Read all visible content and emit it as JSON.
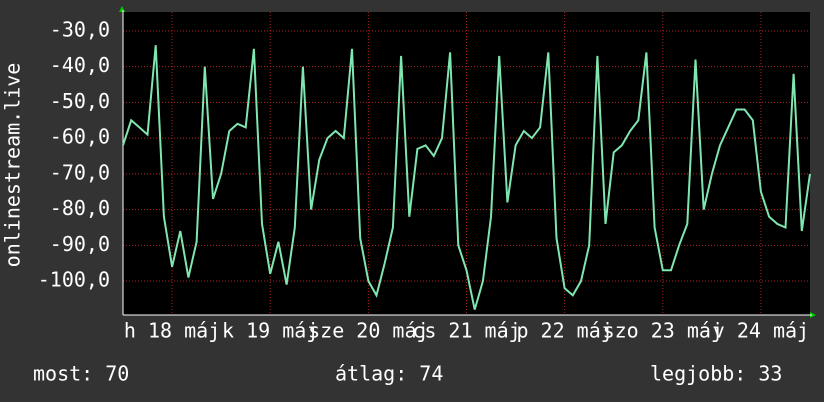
{
  "chart_data": {
    "type": "line",
    "ylabel": "onlinestream.live",
    "x": [
      0,
      2,
      4,
      6,
      8,
      10,
      12,
      14,
      16,
      18,
      20,
      22,
      24,
      26,
      28,
      30,
      32,
      34,
      36,
      38,
      40,
      42,
      44,
      46,
      48,
      50,
      52,
      54,
      56,
      58,
      60,
      62,
      64,
      66,
      68,
      70,
      72,
      74,
      76,
      78,
      80,
      82,
      84,
      86,
      88,
      90,
      92,
      94,
      96,
      98,
      100,
      102,
      104,
      106,
      108,
      110,
      112,
      114,
      116,
      118,
      120,
      122,
      124,
      126,
      128,
      130,
      132,
      134,
      136,
      138,
      140,
      142,
      144,
      146,
      148,
      150,
      152,
      154,
      156,
      158,
      160,
      162,
      164,
      166,
      168
    ],
    "series": [
      {
        "color": "#7fe6b0",
        "values": [
          -62,
          -55,
          -57,
          -59,
          -34,
          -82,
          -96,
          -86,
          -99,
          -89,
          -40,
          -77,
          -70,
          -58,
          -56,
          -57,
          -35,
          -84,
          -98,
          -89,
          -101,
          -85,
          -40,
          -80,
          -66,
          -60,
          -58,
          -60,
          -35,
          -88,
          -100,
          -104,
          -95,
          -85,
          -37,
          -82,
          -63,
          -62,
          -65,
          -60,
          -36,
          -90,
          -97,
          -108,
          -100,
          -82,
          -37,
          -78,
          -62,
          -58,
          -60,
          -57,
          -36,
          -88,
          -102,
          -104,
          -100,
          -90,
          -37,
          -84,
          -64,
          -62,
          -58,
          -55,
          -36,
          -85,
          -97,
          -97,
          -90,
          -84,
          -38,
          -80,
          -70,
          -62,
          -57,
          -52,
          -52,
          -55,
          -75,
          -82,
          -84,
          -85,
          -42,
          -86,
          -70
        ]
      }
    ],
    "xlim": [
      0,
      168
    ],
    "xticks": [
      {
        "value": 12,
        "label": "h 18 máj"
      },
      {
        "value": 36,
        "label": "k 19 máj"
      },
      {
        "value": 60,
        "label": "sze 20 máj"
      },
      {
        "value": 84,
        "label": "cs 21 máj"
      },
      {
        "value": 108,
        "label": "p 22 máj"
      },
      {
        "value": 132,
        "label": "szo 23 máj"
      },
      {
        "value": 156,
        "label": "v 24 máj"
      }
    ],
    "ylim": [
      -109.5,
      -24.7
    ],
    "yticks": [
      {
        "value": -30,
        "label": "-30,0"
      },
      {
        "value": -40,
        "label": "-40,0"
      },
      {
        "value": -50,
        "label": "-50,0"
      },
      {
        "value": -60,
        "label": "-60,0"
      },
      {
        "value": -70,
        "label": "-70,0"
      },
      {
        "value": -80,
        "label": "-80,0"
      },
      {
        "value": -90,
        "label": "-90,0"
      },
      {
        "value": -100,
        "label": "-100,0"
      }
    ],
    "grid": true,
    "stats": [
      "most: 70",
      "átlag: 74",
      "legjobb: 33"
    ]
  }
}
